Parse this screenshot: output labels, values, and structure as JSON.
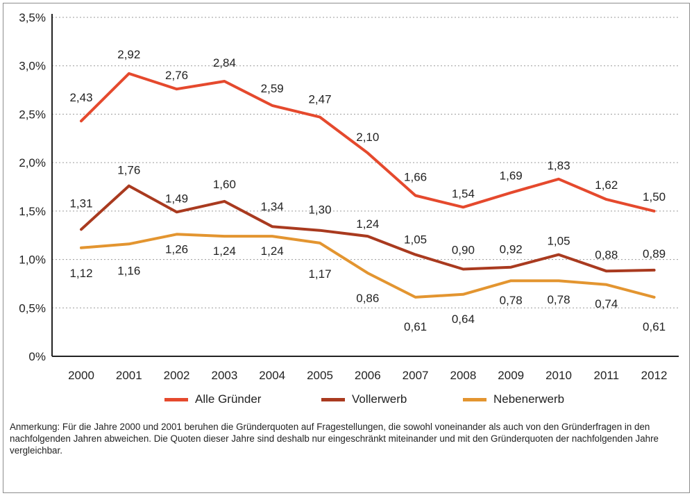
{
  "chart_data": {
    "type": "line",
    "categories": [
      "2000",
      "2001",
      "2002",
      "2003",
      "2004",
      "2005",
      "2006",
      "2007",
      "2008",
      "2009",
      "2010",
      "2011",
      "2012"
    ],
    "ylim": [
      0,
      3.5
    ],
    "y_ticks": [
      "0%",
      "0,5%",
      "1,0%",
      "1,5%",
      "2,0%",
      "2,5%",
      "3,0%",
      "3,5%"
    ],
    "grid": "horizontal dashed",
    "legend_position": "bottom",
    "series": [
      {
        "name": "Alle Gründer",
        "color": "#e5492d",
        "values": [
          2.43,
          2.92,
          2.76,
          2.84,
          2.59,
          2.47,
          2.1,
          1.66,
          1.54,
          1.69,
          1.83,
          1.62,
          1.5
        ],
        "labels": [
          "2,43",
          "2,92",
          "2,76",
          "2,84",
          "2,59",
          "2,47",
          "2,10",
          "1,66",
          "1,54",
          "1,69",
          "1,83",
          "1,62",
          "1,50"
        ]
      },
      {
        "name": "Vollerwerb",
        "color": "#a93a1f",
        "values": [
          1.31,
          1.76,
          1.49,
          1.6,
          1.34,
          1.3,
          1.24,
          1.05,
          0.9,
          0.92,
          1.05,
          0.88,
          0.89
        ],
        "labels": [
          "1,31",
          "1,76",
          "1,49",
          "1,60",
          "1,34",
          "1,30",
          "1,24",
          "1,05",
          "0,90",
          "0,92",
          "1,05",
          "0,88",
          "0,89"
        ]
      },
      {
        "name": "Nebenerwerb",
        "color": "#e39530",
        "values": [
          1.12,
          1.16,
          1.26,
          1.24,
          1.24,
          1.17,
          0.86,
          0.61,
          0.64,
          0.78,
          0.78,
          0.74,
          0.61
        ],
        "labels": [
          "1,12",
          "1,16",
          "1,26",
          "1,24",
          "1,24",
          "1,17",
          "0,86",
          "0,61",
          "0,64",
          "0,78",
          "0,78",
          "0,74",
          "0,61"
        ]
      }
    ]
  },
  "note": "Anmerkung: Für die Jahre 2000 und 2001 beruhen die Gründerquoten auf Fragestellungen, die sowohl voneinander als auch von den Gründerfragen in den nachfolgenden Jahren abweichen. Die Quoten dieser Jahre sind deshalb nur eingeschränkt miteinander und mit den Gründerquoten der nachfolgenden Jahre vergleichbar."
}
